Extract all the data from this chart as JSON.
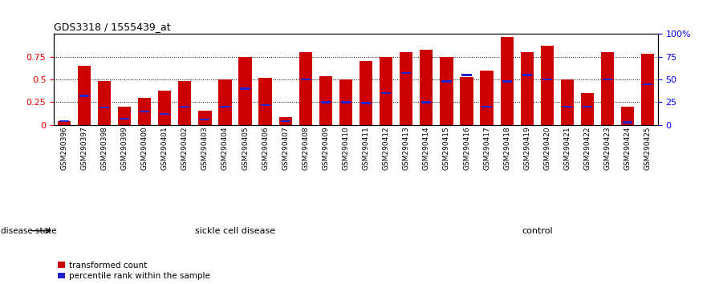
{
  "title": "GDS3318 / 1555439_at",
  "samples": [
    "GSM290396",
    "GSM290397",
    "GSM290398",
    "GSM290399",
    "GSM290400",
    "GSM290401",
    "GSM290402",
    "GSM290403",
    "GSM290404",
    "GSM290405",
    "GSM290406",
    "GSM290407",
    "GSM290408",
    "GSM290409",
    "GSM290410",
    "GSM290411",
    "GSM290412",
    "GSM290413",
    "GSM290414",
    "GSM290415",
    "GSM290416",
    "GSM290417",
    "GSM290418",
    "GSM290419",
    "GSM290420",
    "GSM290421",
    "GSM290422",
    "GSM290423",
    "GSM290424",
    "GSM290425"
  ],
  "transformed_count": [
    0.04,
    0.65,
    0.48,
    0.2,
    0.3,
    0.38,
    0.48,
    0.16,
    0.5,
    0.75,
    0.52,
    0.09,
    0.8,
    0.54,
    0.5,
    0.7,
    0.75,
    0.8,
    0.83,
    0.75,
    0.53,
    0.6,
    0.97,
    0.8,
    0.87,
    0.5,
    0.35,
    0.8,
    0.2,
    0.78
  ],
  "percentile_rank": [
    0.04,
    0.32,
    0.19,
    0.07,
    0.15,
    0.12,
    0.2,
    0.06,
    0.2,
    0.4,
    0.22,
    0.04,
    0.5,
    0.25,
    0.25,
    0.24,
    0.35,
    0.57,
    0.25,
    0.48,
    0.55,
    0.2,
    0.48,
    0.55,
    0.5,
    0.2,
    0.2,
    0.5,
    0.03,
    0.45
  ],
  "sickle_count": 18,
  "control_count": 12,
  "sickle_color": "#c8f0c8",
  "control_color": "#50c850",
  "bar_color_red": "#cc0000",
  "bar_color_blue": "#2222cc",
  "background_color": "#ffffff",
  "ylim": [
    0,
    1.0
  ],
  "right_ylim": [
    0,
    100
  ]
}
